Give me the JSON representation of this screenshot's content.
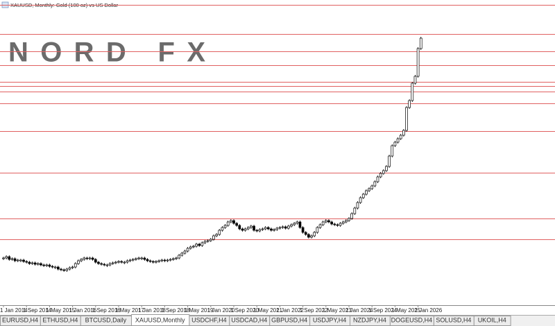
{
  "header": {
    "title": "XAUUSD, Monthly:  Gold (100 oz) vs US Dollar"
  },
  "logo": "NORD FX",
  "chart_data": {
    "type": "candlestick",
    "ylim": [
      1100,
      4620
    ],
    "values": [
      1644,
      1660,
      1628,
      1636,
      1612,
      1620,
      1620,
      1604,
      1596,
      1580,
      1588,
      1572,
      1580,
      1564,
      1556,
      1564,
      1548,
      1540,
      1540,
      1516,
      1508,
      1500,
      1516,
      1532,
      1540,
      1580,
      1612,
      1628,
      1644,
      1636,
      1644,
      1628,
      1596,
      1580,
      1572,
      1564,
      1564,
      1580,
      1588,
      1596,
      1604,
      1596,
      1596,
      1612,
      1620,
      1628,
      1636,
      1644,
      1644,
      1628,
      1612,
      1604,
      1596,
      1604,
      1612,
      1620,
      1612,
      1620,
      1628,
      1636,
      1644,
      1676,
      1700,
      1724,
      1756,
      1772,
      1780,
      1804,
      1788,
      1820,
      1836,
      1844,
      1860,
      1900,
      1916,
      1964,
      1996,
      2020,
      2060,
      2076,
      2044,
      2020,
      1980,
      1964,
      1980,
      1996,
      2012,
      1964,
      1956,
      1972,
      1980,
      1996,
      1980,
      1964,
      1972,
      1988,
      1996,
      2004,
      1988,
      2012,
      2028,
      2044,
      2060,
      1996,
      1940,
      1916,
      1884,
      1900,
      1940,
      1996,
      2028,
      2060,
      2076,
      2060,
      2036,
      2028,
      2020,
      2044,
      2060,
      2076,
      2100,
      2156,
      2220,
      2284,
      2340,
      2380,
      2420,
      2444,
      2476,
      2524,
      2580,
      2620,
      2652,
      2700,
      2820,
      2940,
      2980,
      3020,
      3060,
      3116,
      3380,
      3460,
      3660,
      3740,
      4060,
      4180
    ],
    "levels": [
      4564,
      4228,
      4028,
      3868,
      3676,
      3628,
      3564,
      3428,
      3108,
      2628,
      2100,
      1860
    ],
    "level_color": "#e06060",
    "up_color": "#ffffff",
    "down_color": "#000000",
    "x_labels": [
      "1 Jan 2014",
      "1 Sep 2014",
      "1 May 2015",
      "1 Jan 2016",
      "1 Sep 2016",
      "1 May 2017",
      "1 Jan 2018",
      "1 Sep 2018",
      "1 May 2019",
      "1 Jan 2020",
      "1 Sep 2020",
      "1 May 2021",
      "1 Jan 2022",
      "1 Sep 2022",
      "1 May 2023",
      "1 Jan 2024",
      "1 Sep 2024",
      "1 May 2025",
      "1 Jan 2026"
    ]
  },
  "tabs": [
    "EURUSD,H4",
    "ETHUSD,H4",
    "BTCUSD,Daily",
    "XAUUSD,Monthly",
    "USDCHF,H4",
    "USDCAD,H4",
    "GBPUSD,H4",
    "USDJPY,H4",
    "NZDJPY,H4",
    "DOGEUSD,H4",
    "SOLUSD,H4",
    "UKOIL,H4"
  ],
  "active_tab": 3
}
